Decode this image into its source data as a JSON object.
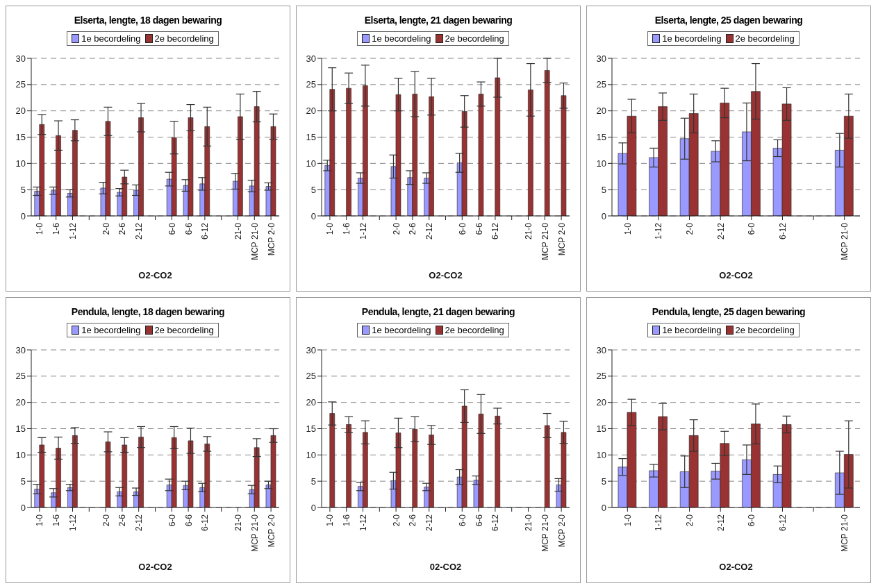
{
  "chart_data": [
    {
      "type": "bar",
      "title": "Elserta, lengte, 18 dagen bewaring",
      "xlabel": "O2-CO2",
      "categories": [
        "1-0",
        "1-6",
        "1-12",
        null,
        "2-0",
        "2-6",
        "2-12",
        null,
        "6-0",
        "6-6",
        "6-12",
        null,
        "21-0",
        "MCP 21-0",
        "MCP  2-0"
      ],
      "ylim": [
        0,
        30
      ],
      "yticks": [
        0,
        5,
        10,
        15,
        20,
        25,
        30
      ],
      "grid": "y",
      "legend": "top",
      "series": [
        {
          "name": "1e becordeling",
          "color": "#9999ff",
          "values": [
            4.7,
            4.8,
            4.3,
            null,
            5.3,
            4.5,
            4.9,
            null,
            7.0,
            5.8,
            6.1,
            null,
            6.6,
            5.7,
            5.6
          ],
          "errors": [
            0.8,
            0.7,
            0.7,
            null,
            1.1,
            0.7,
            1.0,
            null,
            1.3,
            1.1,
            1.2,
            null,
            1.5,
            1.1,
            0.7
          ]
        },
        {
          "name": "2e becordeling",
          "color": "#993333",
          "values": [
            17.4,
            15.3,
            16.3,
            null,
            18.0,
            7.4,
            18.7,
            null,
            14.9,
            18.7,
            17.0,
            null,
            18.9,
            20.8,
            17.0
          ],
          "errors": [
            1.9,
            2.8,
            2.0,
            null,
            2.7,
            1.3,
            2.7,
            null,
            3.1,
            2.5,
            3.7,
            null,
            4.3,
            2.9,
            2.4
          ]
        }
      ]
    },
    {
      "type": "bar",
      "title": "Elserta, lengte, 21 dagen bewaring",
      "xlabel": "O2-CO2",
      "categories": [
        "1-0",
        "1-6",
        "1-12",
        null,
        "2-0",
        "2-6",
        "2-12",
        null,
        "6-0",
        "6-6",
        "6-12",
        null,
        "21-0",
        "MCP 21-0",
        "MCP  2-0"
      ],
      "ylim": [
        0,
        30
      ],
      "yticks": [
        0,
        5,
        10,
        15,
        20,
        25,
        30
      ],
      "grid": "y",
      "legend": "top",
      "series": [
        {
          "name": "1e becordeling",
          "color": "#9999ff",
          "values": [
            9.6,
            null,
            7.2,
            null,
            9.4,
            7.3,
            7.2,
            null,
            10.1,
            null,
            null,
            null,
            null,
            null,
            null
          ],
          "errors": [
            1.0,
            null,
            1.0,
            null,
            2.2,
            1.3,
            1.0,
            null,
            1.8,
            null,
            null,
            null,
            null,
            null,
            null
          ]
        },
        {
          "name": "2e becordeling",
          "color": "#993333",
          "values": [
            24.1,
            24.3,
            24.8,
            null,
            23.1,
            23.2,
            22.7,
            null,
            19.9,
            23.2,
            26.3,
            null,
            24.0,
            27.7,
            22.9
          ],
          "errors": [
            4.1,
            2.9,
            3.9,
            null,
            3.1,
            4.3,
            3.5,
            null,
            3.0,
            2.3,
            3.7,
            null,
            5.0,
            2.3,
            2.4
          ]
        }
      ]
    },
    {
      "type": "bar",
      "title": "Elserta, lengte, 25 dagen bewaring",
      "xlabel": "O2-CO2",
      "categories": [
        "1-0",
        "1-12",
        "2-0",
        "2-12",
        "6-0",
        "6-12",
        null,
        "MCP 21-0"
      ],
      "ylim": [
        0,
        30
      ],
      "yticks": [
        0,
        5,
        10,
        15,
        20,
        25,
        30
      ],
      "grid": "y",
      "legend": "top",
      "series": [
        {
          "name": "1e becordeling",
          "color": "#9999ff",
          "values": [
            11.9,
            11.1,
            14.7,
            12.3,
            16.0,
            12.9,
            null,
            12.5
          ],
          "errors": [
            2.0,
            1.8,
            3.9,
            2.0,
            5.5,
            1.6,
            null,
            3.2
          ]
        },
        {
          "name": "2e becordeling",
          "color": "#993333",
          "values": [
            19.0,
            20.8,
            19.5,
            21.5,
            23.7,
            21.3,
            null,
            19.0
          ],
          "errors": [
            3.2,
            2.6,
            3.7,
            2.8,
            5.3,
            3.1,
            null,
            4.2
          ]
        }
      ]
    },
    {
      "type": "bar",
      "title": "Pendula, lengte, 18 dagen bewaring",
      "xlabel": "O2-CO2",
      "categories": [
        "1-0",
        "1-6",
        "1-12",
        null,
        "2-0",
        "2-6",
        "2-12",
        null,
        "6-0",
        "6-6",
        "6-12",
        null,
        "21-0",
        "MCP 21-0",
        "MCP  2-0"
      ],
      "ylim": [
        0,
        30
      ],
      "yticks": [
        0,
        5,
        10,
        15,
        20,
        25,
        30
      ],
      "grid": "y",
      "legend": "top",
      "series": [
        {
          "name": "1e becordeling",
          "color": "#9999ff",
          "values": [
            3.5,
            2.8,
            3.8,
            null,
            null,
            3.0,
            3.0,
            null,
            4.3,
            4.2,
            3.8,
            null,
            null,
            3.4,
            4.3
          ],
          "errors": [
            0.9,
            0.8,
            0.6,
            null,
            null,
            0.8,
            0.7,
            null,
            1.1,
            0.8,
            0.8,
            null,
            null,
            0.8,
            0.7
          ]
        },
        {
          "name": "2e becordeling",
          "color": "#993333",
          "values": [
            11.9,
            11.3,
            13.7,
            null,
            12.5,
            11.9,
            13.4,
            null,
            13.3,
            12.7,
            12.1,
            null,
            null,
            11.4,
            13.7
          ],
          "errors": [
            1.4,
            2.1,
            1.5,
            null,
            1.9,
            1.4,
            2.0,
            null,
            2.1,
            2.4,
            1.4,
            null,
            null,
            1.7,
            1.3
          ]
        }
      ]
    },
    {
      "type": "bar",
      "title": "Pendula, lengte, 21 dagen bewaring",
      "xlabel": "02-CO2",
      "categories": [
        "1-0",
        "1-6",
        "1-12",
        null,
        "2-0",
        "2-6",
        "2-12",
        null,
        "6-0",
        "6-6",
        "6-12",
        null,
        "21-0",
        "MCP 21-0",
        "MCP  2-0"
      ],
      "ylim": [
        0,
        30
      ],
      "yticks": [
        0,
        5,
        10,
        15,
        20,
        25,
        30
      ],
      "grid": "y",
      "legend": "top",
      "series": [
        {
          "name": "1e becordeling",
          "color": "#9999ff",
          "values": [
            null,
            null,
            4.0,
            null,
            5.1,
            null,
            3.9,
            null,
            5.8,
            5.2,
            null,
            null,
            null,
            null,
            4.3
          ],
          "errors": [
            null,
            null,
            0.8,
            null,
            1.6,
            null,
            0.7,
            null,
            1.4,
            0.8,
            null,
            null,
            null,
            null,
            1.2
          ]
        },
        {
          "name": "2e becordeling",
          "color": "#993333",
          "values": [
            17.9,
            15.8,
            14.3,
            null,
            14.2,
            14.9,
            13.8,
            null,
            19.3,
            17.8,
            17.4,
            null,
            null,
            15.6,
            14.3
          ],
          "errors": [
            2.2,
            1.5,
            2.2,
            null,
            2.8,
            2.4,
            1.8,
            null,
            3.1,
            3.7,
            1.5,
            null,
            null,
            2.3,
            2.1
          ]
        }
      ]
    },
    {
      "type": "bar",
      "title": "Pendula, lengte, 25 dagen bewaring",
      "xlabel": "O2-CO2",
      "categories": [
        "1-0",
        "1-12",
        "2-0",
        "2-12",
        "6-0",
        "6-12",
        null,
        "MCP 21-0"
      ],
      "ylim": [
        0,
        30
      ],
      "yticks": [
        0,
        5,
        10,
        15,
        20,
        25,
        30
      ],
      "grid": "y",
      "legend": "top",
      "series": [
        {
          "name": "1e becordeling",
          "color": "#9999ff",
          "values": [
            7.7,
            7.0,
            6.8,
            6.9,
            9.1,
            6.3,
            null,
            6.6
          ],
          "errors": [
            1.6,
            1.2,
            3.0,
            1.5,
            2.8,
            1.6,
            null,
            4.1
          ]
        },
        {
          "name": "2e becordeling",
          "color": "#993333",
          "values": [
            18.1,
            17.3,
            13.7,
            12.2,
            15.9,
            15.8,
            null,
            10.1
          ],
          "errors": [
            2.5,
            2.5,
            3.0,
            2.3,
            3.8,
            1.6,
            null,
            6.4
          ]
        }
      ]
    }
  ]
}
